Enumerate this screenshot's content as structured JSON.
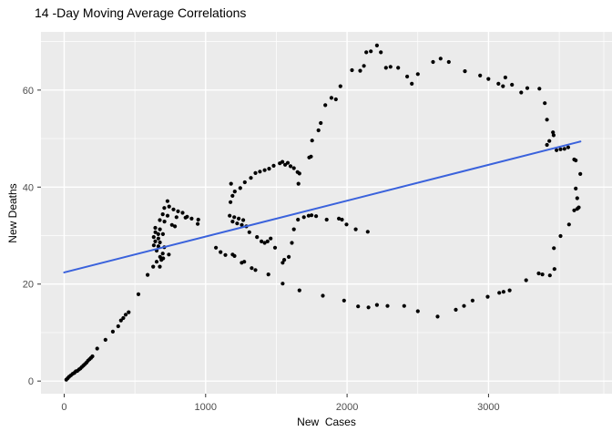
{
  "title": "14 -Day Moving Average Correlations",
  "chart_data": {
    "type": "scatter",
    "title": "14 -Day Moving Average Correlations",
    "xlabel": "New  Cases",
    "ylabel": "New Deaths",
    "x_ticks": [
      0,
      1000,
      2000,
      3000
    ],
    "y_ticks": [
      0,
      20,
      40,
      60
    ],
    "x_minor_breaks": [
      500,
      1500,
      2500,
      3500,
      3815
    ],
    "y_minor_breaks": [
      10,
      30,
      50,
      70
    ],
    "xlim": [
      -164,
      3873
    ],
    "ylim": [
      -2.6,
      72.0
    ],
    "grid": true,
    "legend": false,
    "panel_background": "#EBEBEB",
    "grid_color": "#FFFFFF",
    "tick_color": "#333333",
    "tick_label_color": "#4D4D4D",
    "point_color": "#000000",
    "point_radius": 2.1,
    "smooth_line": {
      "color": "#3A62DC",
      "width": 2,
      "x1": 0,
      "y1": 22.4,
      "x2": 3650,
      "y2": 49.4
    },
    "points": [
      [
        15,
        0.3
      ],
      [
        25,
        0.6
      ],
      [
        35,
        0.9
      ],
      [
        48,
        1.2
      ],
      [
        60,
        1.5
      ],
      [
        72,
        1.7
      ],
      [
        82,
        2.0
      ],
      [
        93,
        2.1
      ],
      [
        105,
        2.4
      ],
      [
        115,
        2.6
      ],
      [
        125,
        2.9
      ],
      [
        136,
        3.2
      ],
      [
        147,
        3.5
      ],
      [
        158,
        3.8
      ],
      [
        168,
        4.2
      ],
      [
        179,
        4.5
      ],
      [
        190,
        4.8
      ],
      [
        200,
        5.1
      ],
      [
        233,
        6.7
      ],
      [
        292,
        8.5
      ],
      [
        344,
        10.2
      ],
      [
        382,
        11.3
      ],
      [
        401,
        12.5
      ],
      [
        418,
        13.0
      ],
      [
        435,
        13.7
      ],
      [
        456,
        14.2
      ],
      [
        525,
        17.9
      ],
      [
        590,
        21.9
      ],
      [
        629,
        23.6
      ],
      [
        654,
        24.6
      ],
      [
        676,
        23.6
      ],
      [
        687,
        25.0
      ],
      [
        700,
        25.3
      ],
      [
        740,
        26.1
      ],
      [
        730,
        37.1
      ],
      [
        742,
        36.0
      ],
      [
        708,
        35.7
      ],
      [
        773,
        35.4
      ],
      [
        805,
        35.0
      ],
      [
        837,
        34.7
      ],
      [
        697,
        34.4
      ],
      [
        731,
        34.1
      ],
      [
        794,
        33.8
      ],
      [
        858,
        33.7
      ],
      [
        901,
        33.5
      ],
      [
        948,
        33.3
      ],
      [
        676,
        33.2
      ],
      [
        709,
        32.9
      ],
      [
        762,
        32.2
      ],
      [
        783,
        31.9
      ],
      [
        644,
        31.6
      ],
      [
        677,
        31.3
      ],
      [
        645,
        30.7
      ],
      [
        665,
        30.3
      ],
      [
        698,
        30.3
      ],
      [
        633,
        29.7
      ],
      [
        666,
        29.4
      ],
      [
        644,
        28.8
      ],
      [
        677,
        28.6
      ],
      [
        634,
        28.0
      ],
      [
        666,
        27.8
      ],
      [
        708,
        27.6
      ],
      [
        654,
        26.9
      ],
      [
        697,
        26.3
      ],
      [
        678,
        25.6
      ],
      [
        869,
        33.9
      ],
      [
        944,
        32.4
      ],
      [
        1073,
        27.5
      ],
      [
        1106,
        26.6
      ],
      [
        1140,
        26.0
      ],
      [
        1191,
        26.1
      ],
      [
        1204,
        25.8
      ],
      [
        1255,
        24.4
      ],
      [
        1273,
        24.6
      ],
      [
        1326,
        23.3
      ],
      [
        1352,
        22.9
      ],
      [
        1444,
        22.0
      ],
      [
        1491,
        27.5
      ],
      [
        1460,
        29.4
      ],
      [
        1438,
        28.8
      ],
      [
        1417,
        28.5
      ],
      [
        1395,
        28.8
      ],
      [
        1363,
        29.7
      ],
      [
        1309,
        30.7
      ],
      [
        1545,
        24.4
      ],
      [
        1556,
        25.0
      ],
      [
        1588,
        25.6
      ],
      [
        1610,
        28.5
      ],
      [
        1624,
        31.3
      ],
      [
        1653,
        33.3
      ],
      [
        1695,
        33.8
      ],
      [
        1728,
        34.1
      ],
      [
        1749,
        34.2
      ],
      [
        1781,
        34.0
      ],
      [
        1856,
        33.3
      ],
      [
        1942,
        33.5
      ],
      [
        1964,
        33.3
      ],
      [
        1996,
        32.3
      ],
      [
        2061,
        31.3
      ],
      [
        2146,
        30.8
      ],
      [
        1170,
        34.1
      ],
      [
        1202,
        33.8
      ],
      [
        1234,
        33.5
      ],
      [
        1266,
        33.2
      ],
      [
        1191,
        32.9
      ],
      [
        1223,
        32.5
      ],
      [
        1256,
        32.2
      ],
      [
        1288,
        31.9
      ],
      [
        1176,
        36.9
      ],
      [
        1190,
        38.2
      ],
      [
        1206,
        39.1
      ],
      [
        1245,
        39.8
      ],
      [
        1180,
        40.7
      ],
      [
        1277,
        41.0
      ],
      [
        1320,
        41.9
      ],
      [
        1352,
        42.9
      ],
      [
        1384,
        43.2
      ],
      [
        1417,
        43.5
      ],
      [
        1449,
        43.8
      ],
      [
        1481,
        44.4
      ],
      [
        1524,
        44.9
      ],
      [
        1543,
        45.2
      ],
      [
        1562,
        44.6
      ],
      [
        1581,
        45.0
      ],
      [
        1600,
        44.3
      ],
      [
        1624,
        43.9
      ],
      [
        1650,
        43.1
      ],
      [
        1663,
        42.8
      ],
      [
        1656,
        40.7
      ],
      [
        1732,
        46.1
      ],
      [
        1745,
        46.3
      ],
      [
        1753,
        49.6
      ],
      [
        1798,
        51.7
      ],
      [
        1814,
        53.2
      ],
      [
        1846,
        56.9
      ],
      [
        1889,
        58.4
      ],
      [
        1921,
        58.1
      ],
      [
        1953,
        60.8
      ],
      [
        2035,
        64.1
      ],
      [
        2093,
        64.0
      ],
      [
        2119,
        65.0
      ],
      [
        2136,
        67.8
      ],
      [
        2168,
        68.0
      ],
      [
        2211,
        69.2
      ],
      [
        2239,
        67.8
      ],
      [
        2275,
        64.6
      ],
      [
        2307,
        64.8
      ],
      [
        2361,
        64.6
      ],
      [
        2425,
        62.8
      ],
      [
        2458,
        61.3
      ],
      [
        2500,
        63.3
      ],
      [
        2608,
        65.8
      ],
      [
        2661,
        66.5
      ],
      [
        2719,
        65.8
      ],
      [
        2833,
        63.9
      ],
      [
        2941,
        63.0
      ],
      [
        2999,
        62.3
      ],
      [
        3070,
        61.3
      ],
      [
        3102,
        60.8
      ],
      [
        3119,
        62.6
      ],
      [
        3166,
        61.1
      ],
      [
        3231,
        59.5
      ],
      [
        3274,
        60.4
      ],
      [
        3360,
        60.3
      ],
      [
        3398,
        57.3
      ],
      [
        3413,
        53.9
      ],
      [
        3456,
        51.3
      ],
      [
        3460,
        50.7
      ],
      [
        3430,
        49.5
      ],
      [
        3413,
        48.7
      ],
      [
        3481,
        47.6
      ],
      [
        3509,
        47.8
      ],
      [
        3537,
        47.9
      ],
      [
        3563,
        48.2
      ],
      [
        3606,
        45.7
      ],
      [
        3617,
        45.5
      ],
      [
        3649,
        42.7
      ],
      [
        3617,
        39.7
      ],
      [
        3627,
        37.7
      ],
      [
        3606,
        35.2
      ],
      [
        3627,
        35.5
      ],
      [
        3638,
        35.8
      ],
      [
        3569,
        32.3
      ],
      [
        3509,
        29.9
      ],
      [
        3462,
        27.4
      ],
      [
        3466,
        23.1
      ],
      [
        3434,
        21.8
      ],
      [
        3381,
        22.0
      ],
      [
        3355,
        22.2
      ],
      [
        3266,
        20.8
      ],
      [
        3149,
        18.7
      ],
      [
        3106,
        18.4
      ],
      [
        3076,
        18.2
      ],
      [
        2994,
        17.4
      ],
      [
        2887,
        16.6
      ],
      [
        2827,
        15.5
      ],
      [
        2769,
        14.7
      ],
      [
        2640,
        13.3
      ],
      [
        2500,
        14.4
      ],
      [
        2404,
        15.5
      ],
      [
        2286,
        15.5
      ],
      [
        2211,
        15.7
      ],
      [
        2151,
        15.2
      ],
      [
        2078,
        15.4
      ],
      [
        1979,
        16.6
      ],
      [
        1829,
        17.6
      ],
      [
        1663,
        18.7
      ],
      [
        1545,
        20.1
      ]
    ]
  }
}
